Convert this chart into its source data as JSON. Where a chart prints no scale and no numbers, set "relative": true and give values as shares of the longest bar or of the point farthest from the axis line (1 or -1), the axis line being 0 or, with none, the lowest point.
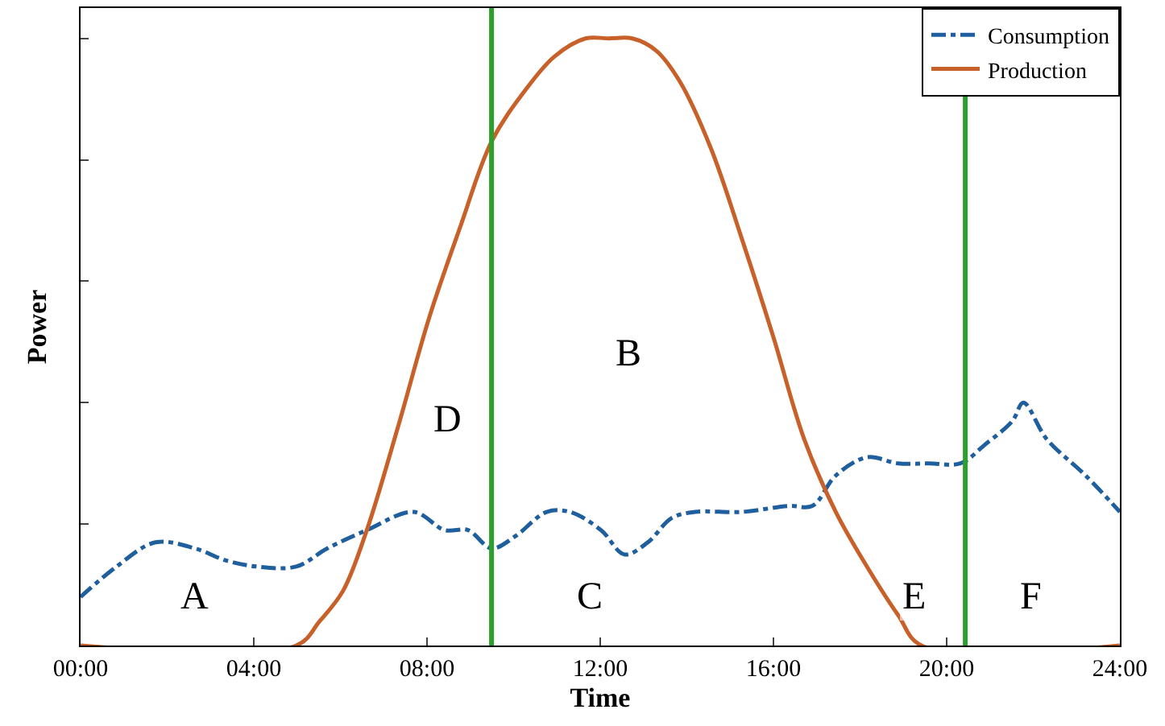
{
  "chart_data": {
    "type": "line",
    "relative": true,
    "xlabel": "Time",
    "ylabel": "Power",
    "xlim": [
      0,
      24
    ],
    "xticks": [
      {
        "value": 0,
        "label": "00:00"
      },
      {
        "value": 4,
        "label": "04:00"
      },
      {
        "value": 8,
        "label": "08:00"
      },
      {
        "value": 12,
        "label": "12:00"
      },
      {
        "value": 16,
        "label": "16:00"
      },
      {
        "value": 20,
        "label": "20:00"
      },
      {
        "value": 24,
        "label": "24:00"
      }
    ],
    "tick_labels": "x",
    "legend": "top right",
    "series": [
      {
        "name": "Consumption",
        "color": "#1f5f9e",
        "line_style": "dashdot",
        "x": [
          0,
          0.83,
          1.73,
          2.64,
          3.36,
          4.08,
          4.98,
          5.7,
          6.61,
          7.69,
          8.41,
          8.95,
          9.49,
          10.04,
          10.76,
          11.3,
          12.02,
          12.56,
          13.1,
          13.65,
          14.19,
          15.27,
          16.35,
          16.9,
          17.44,
          18.16,
          18.88,
          19.6,
          20.32,
          20.87,
          21.52,
          21.77,
          22.31,
          23.21,
          24
        ],
        "values": [
          0.08,
          0.13,
          0.17,
          0.16,
          0.14,
          0.13,
          0.13,
          0.16,
          0.19,
          0.22,
          0.19,
          0.19,
          0.16,
          0.18,
          0.22,
          0.22,
          0.19,
          0.15,
          0.17,
          0.21,
          0.22,
          0.22,
          0.23,
          0.23,
          0.28,
          0.31,
          0.3,
          0.3,
          0.3,
          0.33,
          0.37,
          0.4,
          0.34,
          0.28,
          0.22
        ]
      },
      {
        "name": "Production",
        "color": "#c8602a",
        "line_style": "solid",
        "x": [
          0,
          4.98,
          5.52,
          6.06,
          6.61,
          7.33,
          8.05,
          8.77,
          9.49,
          10.22,
          10.94,
          11.66,
          12.2,
          12.74,
          13.29,
          13.83,
          14.55,
          15.27,
          15.99,
          16.71,
          17.44,
          18.16,
          18.88,
          19.42,
          24
        ],
        "values": [
          0,
          0,
          0.04,
          0.09,
          0.19,
          0.36,
          0.54,
          0.69,
          0.83,
          0.91,
          0.97,
          1.0,
          1.0,
          1.0,
          0.98,
          0.93,
          0.82,
          0.67,
          0.51,
          0.34,
          0.22,
          0.13,
          0.05,
          0,
          0
        ]
      }
    ],
    "ref_lines": [
      {
        "axis": "x",
        "value": 9.49,
        "color": "#2ca02c"
      },
      {
        "axis": "x",
        "value": 20.43,
        "color": "#2ca02c"
      }
    ],
    "annotations": [
      {
        "text": "A",
        "x": 2.64,
        "y": 0.08
      },
      {
        "text": "B",
        "x": 12.64,
        "y": 0.48
      },
      {
        "text": "C",
        "x": 11.77,
        "y": 0.08
      },
      {
        "text": "D",
        "x": 8.48,
        "y": 0.37
      },
      {
        "text": "E",
        "x": 19.24,
        "y": 0.08
      },
      {
        "text": "F",
        "x": 21.95,
        "y": 0.08
      }
    ]
  }
}
